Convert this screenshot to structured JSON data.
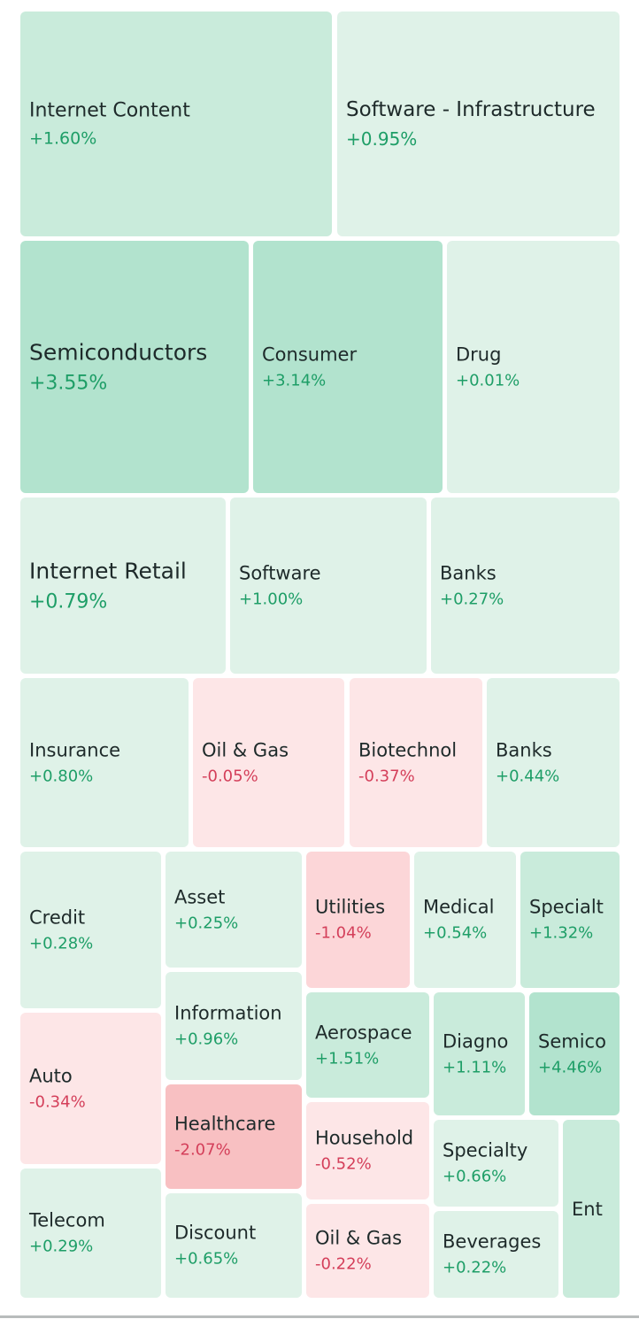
{
  "colors": {
    "pos_text": "#1e9e67",
    "neg_text": "#d43f5a",
    "pos_light": "#dff2e8",
    "pos_mid": "#c9ebdb",
    "pos_strong": "#b2e3ce",
    "neg_light": "#fde6e7",
    "neg_mid": "#fcd6d8",
    "neg_strong": "#f8c0c2"
  },
  "chart_data": {
    "type": "treemap",
    "tiles": [
      {
        "name": "Internet Content",
        "change": "+1.60%",
        "value": 1.6
      },
      {
        "name": "Software - Infrastructure",
        "change": "+0.95%",
        "value": 0.95
      },
      {
        "name": "Semiconductors",
        "change": "+3.55%",
        "value": 3.55
      },
      {
        "name": "Consumer",
        "change": "+3.14%",
        "value": 3.14
      },
      {
        "name": "Drug",
        "change": "+0.01%",
        "value": 0.01
      },
      {
        "name": "Internet Retail",
        "change": "+0.79%",
        "value": 0.79
      },
      {
        "name": "Software",
        "change": "+1.00%",
        "value": 1.0
      },
      {
        "name": "Banks",
        "change": "+0.27%",
        "value": 0.27
      },
      {
        "name": "Insurance",
        "change": "+0.80%",
        "value": 0.8
      },
      {
        "name": "Oil & Gas",
        "change": "-0.05%",
        "value": -0.05
      },
      {
        "name": "Biotechnol",
        "change": "-0.37%",
        "value": -0.37
      },
      {
        "name": "Banks",
        "change": "+0.44%",
        "value": 0.44
      },
      {
        "name": "Credit",
        "change": "+0.28%",
        "value": 0.28
      },
      {
        "name": "Asset",
        "change": "+0.25%",
        "value": 0.25
      },
      {
        "name": "Utilities",
        "change": "-1.04%",
        "value": -1.04
      },
      {
        "name": "Medical",
        "change": "+0.54%",
        "value": 0.54
      },
      {
        "name": "Specialt",
        "change": "+1.32%",
        "value": 1.32
      },
      {
        "name": "Information",
        "change": "+0.96%",
        "value": 0.96
      },
      {
        "name": "Aerospace",
        "change": "+1.51%",
        "value": 1.51
      },
      {
        "name": "Diagno",
        "change": "+1.11%",
        "value": 1.11
      },
      {
        "name": "Semico",
        "change": "+4.46%",
        "value": 4.46
      },
      {
        "name": "Auto",
        "change": "-0.34%",
        "value": -0.34
      },
      {
        "name": "Healthcare",
        "change": "-2.07%",
        "value": -2.07
      },
      {
        "name": "Household",
        "change": "-0.52%",
        "value": -0.52
      },
      {
        "name": "Specialty",
        "change": "+0.66%",
        "value": 0.66
      },
      {
        "name": "Ent",
        "change": "",
        "value": null
      },
      {
        "name": "Telecom",
        "change": "+0.29%",
        "value": 0.29
      },
      {
        "name": "Discount",
        "change": "+0.65%",
        "value": 0.65
      },
      {
        "name": "Oil & Gas",
        "change": "-0.22%",
        "value": -0.22
      },
      {
        "name": "Beverages",
        "change": "+0.22%",
        "value": 0.22
      }
    ]
  }
}
